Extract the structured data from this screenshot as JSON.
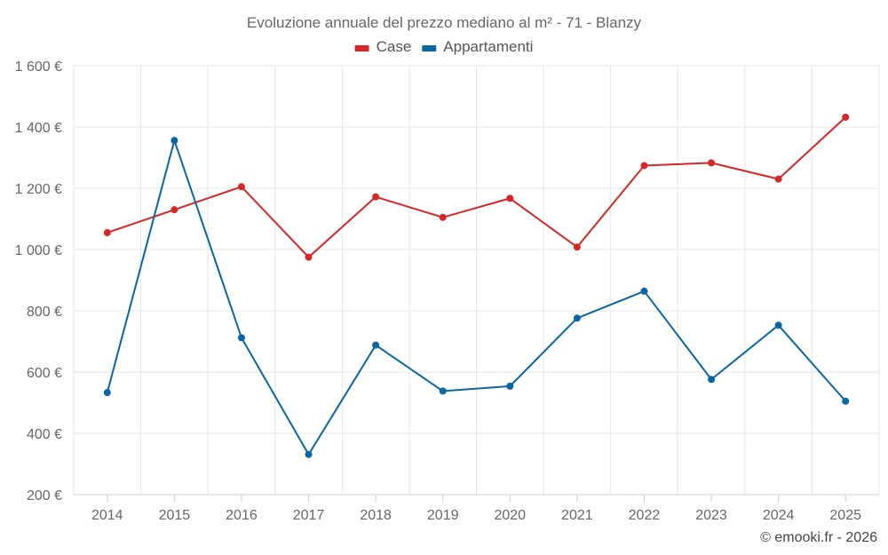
{
  "chart_data": {
    "type": "line",
    "title": "Evoluzione annuale del prezzo mediano al m² - 71 - Blanzy",
    "categories": [
      "2014",
      "2015",
      "2016",
      "2017",
      "2018",
      "2019",
      "2020",
      "2021",
      "2022",
      "2023",
      "2024",
      "2025"
    ],
    "series": [
      {
        "name": "Case",
        "color": "#d62728",
        "values": [
          1055,
          1130,
          1205,
          975,
          1172,
          1105,
          1167,
          1008,
          1274,
          1283,
          1230,
          1432
        ]
      },
      {
        "name": "Appartamenti",
        "color": "#0a66a0",
        "values": [
          533,
          1356,
          712,
          331,
          688,
          538,
          554,
          776,
          864,
          576,
          753,
          505
        ]
      }
    ],
    "ylim": [
      200,
      1600
    ],
    "yticks": [
      200,
      400,
      600,
      800,
      1000,
      1200,
      1400,
      1600
    ],
    "ytick_labels": [
      "200 €",
      "400 €",
      "600 €",
      "800 €",
      "1 000 €",
      "1 200 €",
      "1 400 €",
      "1 600 €"
    ],
    "grid": true,
    "legend_position": "top-center",
    "xlabel": "",
    "ylabel": ""
  },
  "credit": "© emooki.fr - 2026"
}
